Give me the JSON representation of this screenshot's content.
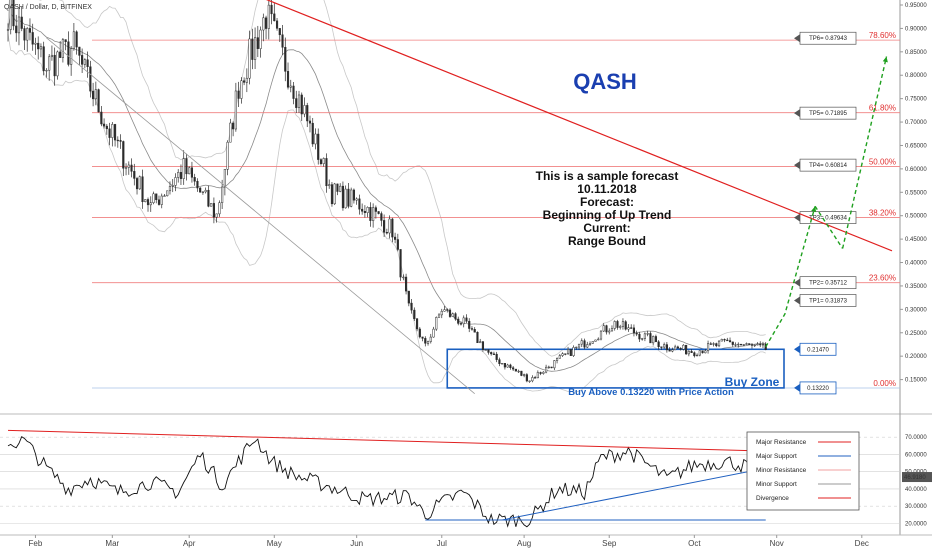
{
  "header": {
    "title": "QASH / Dollar, D, BITFINEX"
  },
  "colors": {
    "up": "#2b2b2b",
    "down": "#2b2b2b",
    "fib": "#f08080",
    "resistance": "#e02020",
    "support": "#2060c0",
    "forecast": "#1fa01f",
    "zone": "#1a5fc0",
    "brand": "#1a3fb0"
  },
  "chart_data": [
    {
      "type": "candlestick",
      "title": "QASH / Dollar, D, BITFINEX",
      "brand": "QASH",
      "xlabel": "",
      "ylabel": "",
      "months": [
        "Feb",
        "Mar",
        "Apr",
        "May",
        "Jun",
        "Jul",
        "Aug",
        "Sep",
        "Oct",
        "Nov",
        "Dec"
      ],
      "ylim": [
        0.1,
        0.95
      ],
      "y_ticks": [
        "0.95000",
        "0.90000",
        "0.85000",
        "0.80000",
        "0.75000",
        "0.70000",
        "0.65000",
        "0.60000",
        "0.55000",
        "0.50000",
        "0.45000",
        "0.40000",
        "0.35000",
        "0.30000",
        "0.25000",
        "0.20000",
        "0.15000"
      ],
      "anchors": {
        "day": [
          0,
          14,
          24,
          36,
          52,
          64,
          76,
          84,
          94,
          108,
          118,
          130,
          140,
          146,
          152,
          158,
          166,
          176,
          190,
          205,
          221,
          240,
          250,
          262,
          276
        ],
        "price": [
          0.94,
          0.82,
          0.86,
          0.69,
          0.52,
          0.6,
          0.5,
          0.78,
          0.93,
          0.72,
          0.55,
          0.52,
          0.47,
          0.3,
          0.22,
          0.3,
          0.27,
          0.2,
          0.15,
          0.21,
          0.27,
          0.22,
          0.21,
          0.23,
          0.215
        ]
      },
      "fib_levels": [
        {
          "label": "78.60%",
          "value": 0.875
        },
        {
          "label": "61.80%",
          "value": 0.72
        },
        {
          "label": "50.00%",
          "value": 0.605
        },
        {
          "label": "38.20%",
          "value": 0.496
        },
        {
          "label": "23.60%",
          "value": 0.357
        },
        {
          "label": "0.00%",
          "value": 0.132
        }
      ],
      "tp_labels": [
        {
          "label": "TP6= 0.87943",
          "value": 0.879
        },
        {
          "label": "TP5= 0.71895",
          "value": 0.719
        },
        {
          "label": "TP4= 0.60814",
          "value": 0.608
        },
        {
          "label": "TP3= 0.49634",
          "value": 0.496
        },
        {
          "label": "TP2= 0.35712",
          "value": 0.357
        },
        {
          "label": "TP1= 0.31873",
          "value": 0.319
        }
      ],
      "price_tags": [
        {
          "label": "0.21470",
          "value": 0.2147
        },
        {
          "label": "0.13220",
          "value": 0.1322
        }
      ],
      "buy_zone": {
        "label": "Buy Zone",
        "sublabel": "Buy Above 0.13220 with Price Action",
        "top": 0.2147,
        "bottom": 0.1322
      },
      "annotation": [
        "This is a sample forecast",
        "10.11.2018",
        "Forecast:",
        "Beginning of Up Trend",
        "Current:",
        "Range Bound"
      ],
      "resistance_line": {
        "from": [
          80,
          0.995
        ],
        "to": [
          322,
          0.425
        ]
      },
      "forecast_path": {
        "day": [
          276,
          283,
          294,
          304,
          320
        ],
        "price": [
          0.22,
          0.29,
          0.52,
          0.43,
          0.84
        ]
      }
    },
    {
      "type": "line",
      "indicator": "RSI",
      "ylim": [
        15,
        80
      ],
      "y_ticks": [
        "70.0000",
        "60.0000",
        "50.0000",
        "40.0000",
        "30.0000",
        "20.0000"
      ],
      "current_value": "46.9180",
      "anchors": {
        "day": [
          0,
          6,
          14,
          22,
          30,
          40,
          52,
          62,
          70,
          78,
          90,
          96,
          104,
          116,
          130,
          146,
          152,
          158,
          166,
          176,
          190,
          200,
          210,
          216,
          226,
          240,
          250,
          262,
          276
        ],
        "value": [
          66,
          68,
          52,
          40,
          46,
          38,
          44,
          38,
          60,
          42,
          70,
          56,
          48,
          42,
          34,
          36,
          25,
          32,
          38,
          22,
          22,
          40,
          38,
          58,
          62,
          46,
          54,
          56,
          50
        ]
      },
      "support_line": {
        "from": [
          180,
          22
        ],
        "to": [
          276,
          52
        ]
      },
      "resistance_line": {
        "from": [
          0,
          74
        ],
        "to": [
          276,
          62
        ]
      }
    }
  ],
  "legend": {
    "items": [
      {
        "label": "Major Resistance",
        "color": "#e02020"
      },
      {
        "label": "Major Support",
        "color": "#2060c0"
      },
      {
        "label": "Minor Resistance",
        "color": "#f0a0a0"
      },
      {
        "label": "Minor Support",
        "color": "#999999"
      },
      {
        "label": "Divergence",
        "color": "#e02020"
      }
    ]
  }
}
